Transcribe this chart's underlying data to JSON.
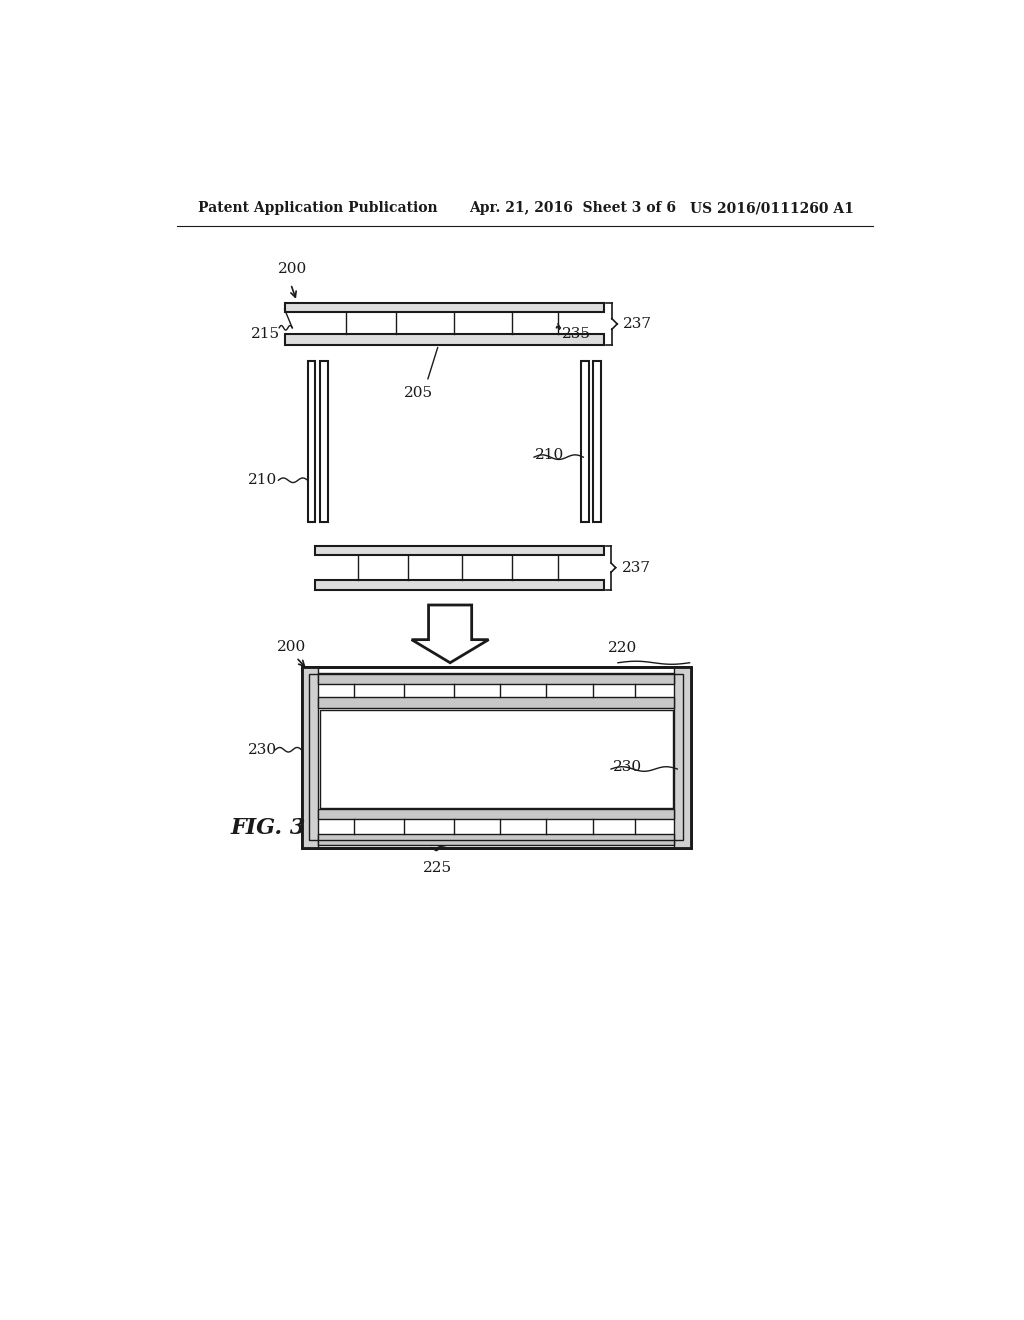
{
  "bg_color": "#ffffff",
  "line_color": "#1a1a1a",
  "header_left": "Patent Application Publication",
  "header_mid": "Apr. 21, 2016  Sheet 3 of 6",
  "header_right": "US 2016/0111260 A1",
  "fig3_label": "FIG. 3"
}
